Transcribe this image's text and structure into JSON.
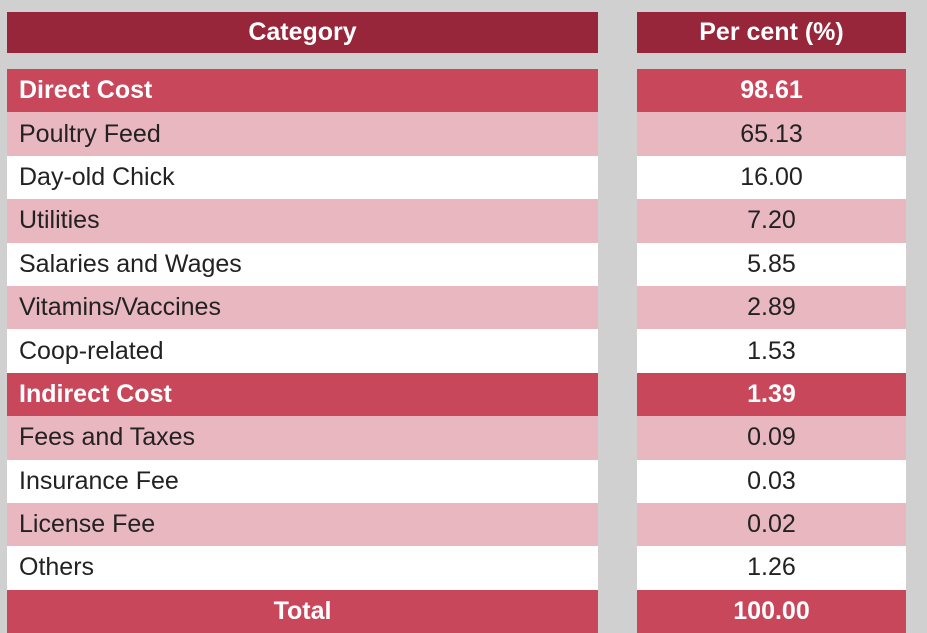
{
  "chart_data": {
    "type": "table",
    "columns": [
      "Category",
      "Per cent (%)"
    ],
    "rows": [
      {
        "category": "Direct Cost",
        "percent": "98.61",
        "kind": "section"
      },
      {
        "category": "Poultry Feed",
        "percent": "65.13",
        "kind": "item"
      },
      {
        "category": "Day-old Chick",
        "percent": "16.00",
        "kind": "item"
      },
      {
        "category": "Utilities",
        "percent": "7.20",
        "kind": "item"
      },
      {
        "category": "Salaries and Wages",
        "percent": "5.85",
        "kind": "item"
      },
      {
        "category": "Vitamins/Vaccines",
        "percent": "2.89",
        "kind": "item"
      },
      {
        "category": "Coop-related",
        "percent": "1.53",
        "kind": "item"
      },
      {
        "category": "Indirect Cost",
        "percent": "1.39",
        "kind": "section"
      },
      {
        "category": "Fees and Taxes",
        "percent": "0.09",
        "kind": "item"
      },
      {
        "category": "Insurance Fee",
        "percent": "0.03",
        "kind": "item"
      },
      {
        "category": "License Fee",
        "percent": "0.02",
        "kind": "item"
      },
      {
        "category": "Others",
        "percent": "1.26",
        "kind": "item"
      },
      {
        "category": "Total",
        "percent": "100.00",
        "kind": "total"
      }
    ]
  },
  "colors": {
    "header": "#97263a",
    "section": "#c9475b",
    "light_row": "#e8b7bf",
    "white_row": "#ffffff",
    "background": "#d0d0d0"
  }
}
